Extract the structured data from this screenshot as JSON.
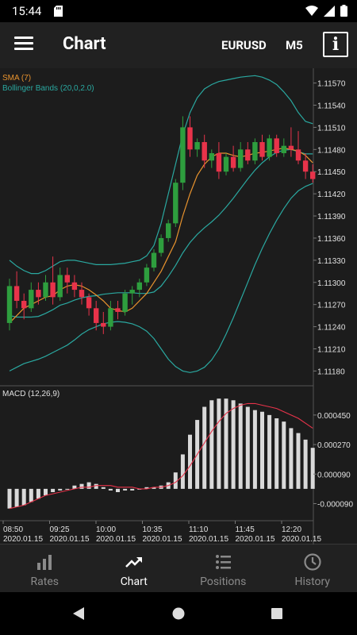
{
  "status_bar": {
    "time": "15:44"
  },
  "app_bar": {
    "title": "Chart",
    "symbol": "EURUSD",
    "timeframe": "M5"
  },
  "chart": {
    "indicators": [
      "SMA (7)",
      "Bollinger Bands (20,0,2.0)"
    ],
    "macd_label": "MACD (12,26,9)",
    "price_ticks": [
      "1.11570",
      "1.11540",
      "1.11510",
      "1.11480",
      "1.11450",
      "1.11420",
      "1.11390",
      "1.11360",
      "1.11330",
      "1.11300",
      "1.11270",
      "1.11240",
      "1.11210",
      "1.11180"
    ],
    "macd_ticks": [
      "0.000450",
      "0.000270",
      "0.000090",
      "-0.000090"
    ],
    "time_ticks": [
      {
        "time": "08:50",
        "date": "2020.01.15"
      },
      {
        "time": "09:25",
        "date": "2020.01.15"
      },
      {
        "time": "10:00",
        "date": "2020.01.15"
      },
      {
        "time": "10:35",
        "date": "2020.01.15"
      },
      {
        "time": "11:10",
        "date": "2020.01.15"
      },
      {
        "time": "11:45",
        "date": "2020.01.15"
      },
      {
        "time": "12:20",
        "date": "2020.01.15"
      }
    ],
    "colors": {
      "bull": "#2e9e3e",
      "bear": "#e8334a",
      "sma": "#e8932e",
      "bollinger": "#2aa8a0",
      "macd_hist": "#d9d9d9",
      "macd_signal": "#e8334a",
      "grid": "#3a3a3a",
      "axis_text": "#e0e0e0"
    }
  },
  "chart_data": {
    "type": "candlestick",
    "price_range": [
      1.1116,
      1.1159
    ],
    "candles": [
      {
        "o": 1.11245,
        "h": 1.11305,
        "l": 1.11235,
        "c": 1.11295
      },
      {
        "o": 1.11295,
        "h": 1.11315,
        "l": 1.11265,
        "c": 1.11275
      },
      {
        "o": 1.11275,
        "h": 1.11285,
        "l": 1.1125,
        "c": 1.11265
      },
      {
        "o": 1.11265,
        "h": 1.113,
        "l": 1.1126,
        "c": 1.1129
      },
      {
        "o": 1.1129,
        "h": 1.113,
        "l": 1.1127,
        "c": 1.1128
      },
      {
        "o": 1.1128,
        "h": 1.1131,
        "l": 1.11275,
        "c": 1.113
      },
      {
        "o": 1.113,
        "h": 1.11335,
        "l": 1.1127,
        "c": 1.1128
      },
      {
        "o": 1.1128,
        "h": 1.1132,
        "l": 1.11275,
        "c": 1.1131
      },
      {
        "o": 1.1131,
        "h": 1.1132,
        "l": 1.11285,
        "c": 1.113
      },
      {
        "o": 1.113,
        "h": 1.1131,
        "l": 1.1128,
        "c": 1.1129
      },
      {
        "o": 1.1129,
        "h": 1.113,
        "l": 1.1127,
        "c": 1.1128
      },
      {
        "o": 1.1128,
        "h": 1.11285,
        "l": 1.11255,
        "c": 1.11265
      },
      {
        "o": 1.11265,
        "h": 1.11275,
        "l": 1.11235,
        "c": 1.11245
      },
      {
        "o": 1.11245,
        "h": 1.1126,
        "l": 1.1123,
        "c": 1.1124
      },
      {
        "o": 1.1124,
        "h": 1.11275,
        "l": 1.11235,
        "c": 1.11265
      },
      {
        "o": 1.11265,
        "h": 1.11275,
        "l": 1.1125,
        "c": 1.1126
      },
      {
        "o": 1.1126,
        "h": 1.1129,
        "l": 1.11255,
        "c": 1.11285
      },
      {
        "o": 1.11285,
        "h": 1.11295,
        "l": 1.1127,
        "c": 1.1129
      },
      {
        "o": 1.1129,
        "h": 1.11305,
        "l": 1.1128,
        "c": 1.113
      },
      {
        "o": 1.113,
        "h": 1.11325,
        "l": 1.11295,
        "c": 1.1132
      },
      {
        "o": 1.1132,
        "h": 1.11345,
        "l": 1.11315,
        "c": 1.1134
      },
      {
        "o": 1.1134,
        "h": 1.11365,
        "l": 1.11335,
        "c": 1.1136
      },
      {
        "o": 1.1136,
        "h": 1.11385,
        "l": 1.11355,
        "c": 1.1138
      },
      {
        "o": 1.1138,
        "h": 1.1144,
        "l": 1.11375,
        "c": 1.11435
      },
      {
        "o": 1.11435,
        "h": 1.11525,
        "l": 1.11425,
        "c": 1.1151
      },
      {
        "o": 1.1151,
        "h": 1.11525,
        "l": 1.1147,
        "c": 1.1148
      },
      {
        "o": 1.1148,
        "h": 1.11495,
        "l": 1.1147,
        "c": 1.1149
      },
      {
        "o": 1.1149,
        "h": 1.115,
        "l": 1.11455,
        "c": 1.11465
      },
      {
        "o": 1.11465,
        "h": 1.1148,
        "l": 1.11455,
        "c": 1.11475
      },
      {
        "o": 1.11475,
        "h": 1.1149,
        "l": 1.1144,
        "c": 1.1145
      },
      {
        "o": 1.1145,
        "h": 1.11475,
        "l": 1.11445,
        "c": 1.1147
      },
      {
        "o": 1.1147,
        "h": 1.11485,
        "l": 1.1145,
        "c": 1.11455
      },
      {
        "o": 1.11455,
        "h": 1.1149,
        "l": 1.1145,
        "c": 1.1148
      },
      {
        "o": 1.1148,
        "h": 1.1149,
        "l": 1.1146,
        "c": 1.11465
      },
      {
        "o": 1.11465,
        "h": 1.11495,
        "l": 1.1146,
        "c": 1.1149
      },
      {
        "o": 1.1149,
        "h": 1.115,
        "l": 1.11465,
        "c": 1.1147
      },
      {
        "o": 1.1147,
        "h": 1.115,
        "l": 1.11465,
        "c": 1.11495
      },
      {
        "o": 1.11495,
        "h": 1.115,
        "l": 1.1147,
        "c": 1.11475
      },
      {
        "o": 1.11475,
        "h": 1.11495,
        "l": 1.1147,
        "c": 1.11485
      },
      {
        "o": 1.11485,
        "h": 1.1151,
        "l": 1.1147,
        "c": 1.1148
      },
      {
        "o": 1.1148,
        "h": 1.11505,
        "l": 1.1146,
        "c": 1.11465
      },
      {
        "o": 1.11465,
        "h": 1.11475,
        "l": 1.1144,
        "c": 1.1145
      },
      {
        "o": 1.1145,
        "h": 1.1146,
        "l": 1.11435,
        "c": 1.1144
      }
    ],
    "sma7": [
      1.11245,
      1.11255,
      1.11265,
      1.1127,
      1.11275,
      1.1128,
      1.11282,
      1.1129,
      1.11295,
      1.11297,
      1.11295,
      1.1129,
      1.11283,
      1.11275,
      1.11265,
      1.11262,
      1.1126,
      1.11265,
      1.11275,
      1.11285,
      1.113,
      1.11315,
      1.11335,
      1.11355,
      1.1139,
      1.1142,
      1.11445,
      1.1146,
      1.1147,
      1.11475,
      1.11475,
      1.11472,
      1.1147,
      1.11472,
      1.11475,
      1.11476,
      1.11478,
      1.1148,
      1.11482,
      1.1148,
      1.11478,
      1.11472,
      1.11462
    ],
    "bb_upper": [
      1.1133,
      1.11322,
      1.11316,
      1.11312,
      1.11312,
      1.11316,
      1.11322,
      1.11328,
      1.1133,
      1.1133,
      1.11328,
      1.11326,
      1.11324,
      1.11324,
      1.11324,
      1.11325,
      1.11326,
      1.11328,
      1.1133,
      1.11336,
      1.1135,
      1.1138,
      1.1142,
      1.1146,
      1.115,
      1.1153,
      1.1155,
      1.11562,
      1.11568,
      1.11572,
      1.11574,
      1.11576,
      1.11578,
      1.11579,
      1.1158,
      1.11578,
      1.11574,
      1.11568,
      1.11558,
      1.11546,
      1.1153,
      1.11518,
      1.11515
    ],
    "bb_lower": [
      1.1118,
      1.11185,
      1.1119,
      1.11193,
      1.11196,
      1.112,
      1.11205,
      1.1121,
      1.11215,
      1.11222,
      1.1123,
      1.11236,
      1.1124,
      1.11244,
      1.11246,
      1.11247,
      1.11246,
      1.11244,
      1.1124,
      1.11234,
      1.11224,
      1.1121,
      1.11196,
      1.11186,
      1.1118,
      1.11178,
      1.1118,
      1.11185,
      1.11195,
      1.1121,
      1.1123,
      1.11252,
      1.11276,
      1.113,
      1.11324,
      1.11346,
      1.11366,
      1.11384,
      1.114,
      1.11414,
      1.11424,
      1.1143,
      1.11434
    ],
    "bb_mid": [
      1.11255,
      1.11253,
      1.11253,
      1.11253,
      1.11254,
      1.11258,
      1.11263,
      1.11269,
      1.11272,
      1.11276,
      1.11279,
      1.11281,
      1.11282,
      1.11284,
      1.11285,
      1.11286,
      1.11286,
      1.11286,
      1.11285,
      1.11285,
      1.11287,
      1.11295,
      1.11308,
      1.11323,
      1.1134,
      1.11354,
      1.11365,
      1.11374,
      1.11382,
      1.11391,
      1.11402,
      1.11414,
      1.11427,
      1.1144,
      1.11452,
      1.11462,
      1.1147,
      1.11476,
      1.11479,
      1.1148,
      1.11477,
      1.11474,
      1.11474
    ],
    "macd_range": [
      -0.00017,
      0.00058
    ],
    "macd_hist": [
      -0.00012,
      -0.00011,
      -0.0001,
      -8e-05,
      -6e-05,
      -4e-05,
      -2e-05,
      -1e-05,
      0.0,
      2e-05,
      3e-05,
      4e-05,
      3e-05,
      1e-05,
      -1e-05,
      -2e-05,
      -1e-05,
      -1e-05,
      0.0,
      1e-05,
      1e-05,
      2e-05,
      4e-05,
      0.0001,
      0.00021,
      0.00033,
      0.00042,
      0.0005,
      0.00054,
      0.00055,
      0.00055,
      0.00054,
      0.00052,
      0.0005,
      0.00048,
      0.00047,
      0.00045,
      0.00043,
      0.00041,
      0.00037,
      0.00034,
      0.0003,
      0.00025
    ],
    "macd_signal": [
      -0.00012,
      -0.00011,
      -0.0001,
      -8e-05,
      -6e-05,
      -4e-05,
      -3e-05,
      -2e-05,
      -1e-05,
      0.0,
      1e-05,
      1e-05,
      2e-05,
      2e-05,
      2e-05,
      1e-05,
      1e-05,
      1e-05,
      0.0,
      0.0,
      1e-05,
      1e-05,
      2e-05,
      4e-05,
      8e-05,
      0.00014,
      0.00021,
      0.00028,
      0.00035,
      0.00041,
      0.00046,
      0.00049,
      0.00051,
      0.00052,
      0.00052,
      0.00051,
      0.0005,
      0.00049,
      0.00047,
      0.00045,
      0.00043,
      0.0004,
      0.00037
    ]
  },
  "bottom_nav": [
    {
      "label": "Rates",
      "icon": "bar-chart-icon",
      "active": false
    },
    {
      "label": "Chart",
      "icon": "trending-up-icon",
      "active": true
    },
    {
      "label": "Positions",
      "icon": "list-icon",
      "active": false
    },
    {
      "label": "History",
      "icon": "clock-icon",
      "active": false
    }
  ]
}
